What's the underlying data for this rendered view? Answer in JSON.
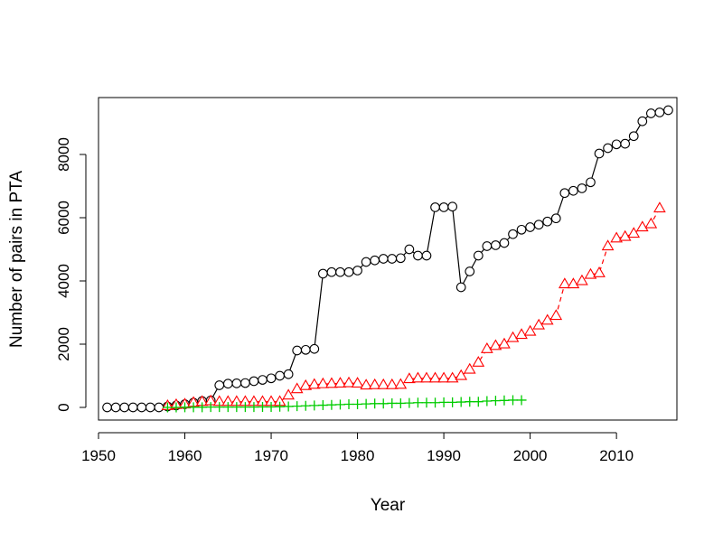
{
  "chart_data": {
    "type": "line",
    "title": "",
    "xlabel": "Year",
    "ylabel": "Number of pairs in PTA",
    "xlim": [
      1950,
      2017
    ],
    "ylim": [
      -400,
      9800
    ],
    "x_ticks": [
      1950,
      1960,
      1970,
      1980,
      1990,
      2000,
      2010
    ],
    "y_ticks": [
      0,
      2000,
      4000,
      6000,
      8000
    ],
    "grid": false,
    "legend": "none",
    "series": [
      {
        "color": "#000000",
        "marker": "circle",
        "line": "solid",
        "x": [
          1951,
          1952,
          1953,
          1954,
          1955,
          1956,
          1957,
          1958,
          1959,
          1960,
          1961,
          1962,
          1963,
          1964,
          1965,
          1966,
          1967,
          1968,
          1969,
          1970,
          1971,
          1972,
          1973,
          1974,
          1975,
          1976,
          1977,
          1978,
          1979,
          1980,
          1981,
          1982,
          1983,
          1984,
          1985,
          1986,
          1987,
          1988,
          1989,
          1990,
          1991,
          1992,
          1993,
          1994,
          1995,
          1996,
          1997,
          1998,
          1999,
          2000,
          2001,
          2002,
          2003,
          2004,
          2005,
          2006,
          2007,
          2008,
          2009,
          2010,
          2011,
          2012,
          2013,
          2014,
          2015,
          2016
        ],
        "y": [
          0,
          0,
          0,
          0,
          0,
          0,
          0,
          30,
          60,
          100,
          150,
          200,
          220,
          700,
          750,
          760,
          770,
          830,
          870,
          920,
          1000,
          1050,
          1800,
          1820,
          1850,
          4230,
          4280,
          4280,
          4280,
          4330,
          4600,
          4650,
          4700,
          4700,
          4720,
          5000,
          4800,
          4800,
          6330,
          6330,
          6350,
          3800,
          4300,
          4800,
          5100,
          5130,
          5200,
          5480,
          5620,
          5700,
          5780,
          5880,
          5980,
          6780,
          6850,
          6930,
          7120,
          8030,
          8200,
          8320,
          8340,
          8580,
          9050,
          9300,
          9330,
          9400
        ]
      },
      {
        "color": "#ff0000",
        "marker": "triangle",
        "line": "dashed",
        "x": [
          1958,
          1959,
          1960,
          1961,
          1962,
          1963,
          1964,
          1965,
          1966,
          1967,
          1968,
          1969,
          1970,
          1971,
          1972,
          1973,
          1974,
          1975,
          1976,
          1977,
          1978,
          1979,
          1980,
          1981,
          1982,
          1983,
          1984,
          1985,
          1986,
          1987,
          1988,
          1989,
          1990,
          1991,
          1992,
          1993,
          1994,
          1995,
          1996,
          1997,
          1998,
          1999,
          2000,
          2001,
          2002,
          2003,
          2004,
          2005,
          2006,
          2007,
          2008,
          2009,
          2010,
          2011,
          2012,
          2013,
          2014,
          2015
        ],
        "y": [
          50,
          80,
          100,
          150,
          180,
          200,
          180,
          180,
          180,
          180,
          180,
          180,
          180,
          180,
          380,
          580,
          680,
          720,
          740,
          750,
          760,
          770,
          760,
          700,
          710,
          710,
          710,
          720,
          900,
          920,
          920,
          920,
          920,
          920,
          1000,
          1200,
          1420,
          1850,
          1950,
          2000,
          2200,
          2300,
          2400,
          2600,
          2750,
          2900,
          3900,
          3900,
          4000,
          4200,
          4250,
          5100,
          5350,
          5400,
          5500,
          5700,
          5800,
          6300
        ]
      },
      {
        "color": "#00cc00",
        "marker": "plus",
        "line": "none",
        "x": [
          1958,
          1959,
          1960,
          1961,
          1962,
          1963,
          1964,
          1965,
          1966,
          1967,
          1968,
          1969,
          1970,
          1971,
          1972,
          1973,
          1974,
          1975,
          1976,
          1977,
          1978,
          1979,
          1980,
          1981,
          1982,
          1983,
          1984,
          1985,
          1986,
          1987,
          1988,
          1989,
          1990,
          1991,
          1992,
          1993,
          1994,
          1995,
          1996,
          1997,
          1998,
          1999
        ],
        "y": [
          0,
          0,
          5,
          5,
          5,
          10,
          10,
          10,
          10,
          10,
          10,
          15,
          15,
          20,
          30,
          40,
          50,
          60,
          70,
          80,
          90,
          100,
          100,
          110,
          120,
          120,
          130,
          130,
          140,
          150,
          150,
          150,
          160,
          160,
          170,
          180,
          180,
          200,
          210,
          220,
          230,
          230
        ]
      }
    ]
  }
}
